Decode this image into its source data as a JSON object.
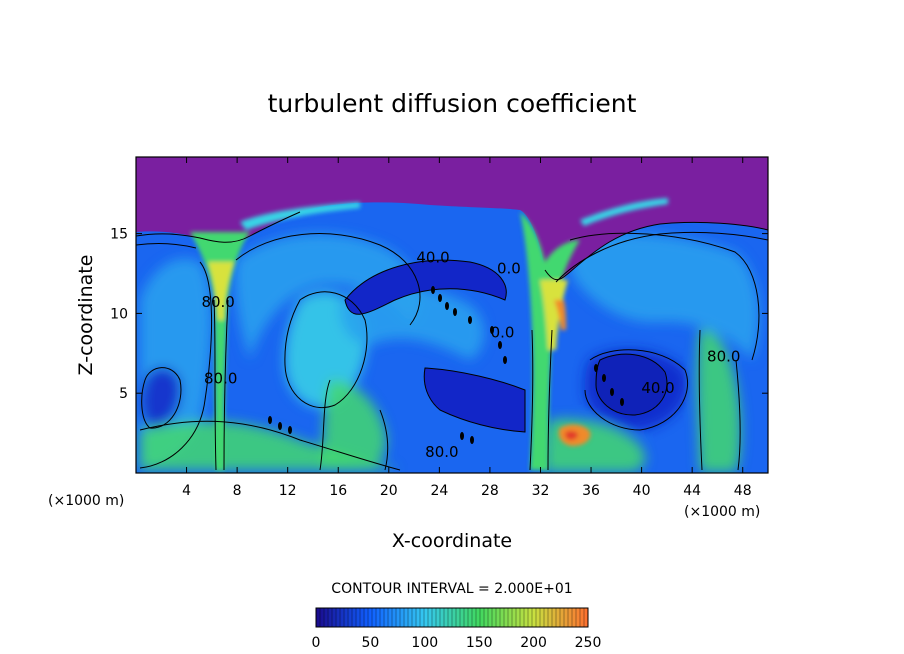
{
  "chart_data": {
    "type": "heatmap",
    "title": "turbulent diffusion coefficient",
    "xlabel": "X-coordinate",
    "ylabel": "Z-coordinate",
    "x_units": "(×1000 m)",
    "x_units_right": "(×1000 m)",
    "xlim": [
      0,
      50
    ],
    "ylim": [
      0,
      19.8
    ],
    "x_ticks": [
      4,
      8,
      12,
      16,
      20,
      24,
      28,
      32,
      36,
      40,
      44,
      48
    ],
    "y_ticks": [
      5,
      10,
      15
    ],
    "contour_interval_text": "CONTOUR INTERVAL = 2.000E+01",
    "contour_labels": [
      {
        "text": "40.0",
        "x": 23.5,
        "z": 13.2
      },
      {
        "text": "40.0",
        "x": 41.3,
        "z": 5.0
      },
      {
        "text": "80.0",
        "x": 6.5,
        "z": 10.4
      },
      {
        "text": "80.0",
        "x": 6.7,
        "z": 5.6
      },
      {
        "text": "80.0",
        "x": 46.5,
        "z": 7.0
      },
      {
        "text": "80.0",
        "x": 24.2,
        "z": 1.0
      },
      {
        "text": "0.0",
        "x": 29.5,
        "z": 12.5
      },
      {
        "text": "0.0",
        "x": 29.0,
        "z": 8.5
      }
    ],
    "colorbar": {
      "min": 0,
      "max": 250,
      "ticks": [
        0,
        50,
        100,
        150,
        200,
        250
      ],
      "colors": [
        "#1a0a8c",
        "#1060ff",
        "#35c8f0",
        "#40d860",
        "#c8e040",
        "#ff7030"
      ]
    },
    "field_colors": {
      "top": "#7a1fa0",
      "low": "#1226c8",
      "mid": "#1a66f0",
      "light": "#2aa2ef",
      "cyan": "#39d4e6",
      "green": "#43d870",
      "yellow": "#d8e23c",
      "orange": "#f08a2a",
      "red": "#e23a2a"
    }
  }
}
